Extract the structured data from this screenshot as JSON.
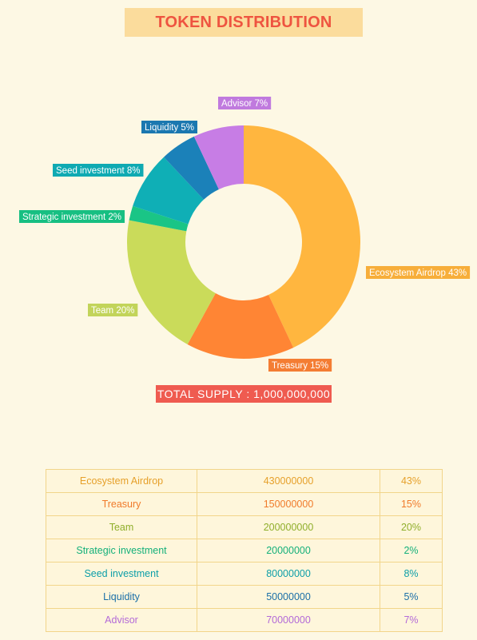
{
  "title": "TOKEN DISTRIBUTION",
  "total_supply_label": "TOTAL SUPPLY : 1,000,000,000",
  "chart_data": {
    "type": "pie",
    "title": "TOKEN DISTRIBUTION",
    "donut": true,
    "slices": [
      {
        "name": "Ecosystem Airdrop",
        "value": 43,
        "label": "Ecosystem Airdrop 43%",
        "color": "#ffb63f"
      },
      {
        "name": "Treasury",
        "value": 15,
        "label": "Treasury 15%",
        "color": "#ff8534"
      },
      {
        "name": "Team",
        "value": 20,
        "label": "Team 20%",
        "color": "#cadb5a"
      },
      {
        "name": "Strategic investment",
        "value": 2,
        "label": "Strategic investment 2%",
        "color": "#1ac586"
      },
      {
        "name": "Seed investment",
        "value": 8,
        "label": "Seed investment 8%",
        "color": "#0fafb6"
      },
      {
        "name": "Liquidity",
        "value": 5,
        "label": "Liquidity 5%",
        "color": "#1b81b9"
      },
      {
        "name": "Advisor",
        "value": 7,
        "label": "Advisor 7%",
        "color": "#c77de5"
      }
    ]
  },
  "table": {
    "rows": [
      {
        "name": "Ecosystem Airdrop",
        "amount": "430000000",
        "percent": "43%",
        "color": "#e6a02a"
      },
      {
        "name": "Treasury",
        "amount": "150000000",
        "percent": "15%",
        "color": "#f07a2a"
      },
      {
        "name": "Team",
        "amount": "200000000",
        "percent": "20%",
        "color": "#8fae2a"
      },
      {
        "name": "Strategic investment",
        "amount": "20000000",
        "percent": "2%",
        "color": "#14b07a"
      },
      {
        "name": "Seed investment",
        "amount": "80000000",
        "percent": "8%",
        "color": "#0c9ea8"
      },
      {
        "name": "Liquidity",
        "amount": "50000000",
        "percent": "5%",
        "color": "#1b6fa8"
      },
      {
        "name": "Advisor",
        "amount": "70000000",
        "percent": "7%",
        "color": "#b36ad8"
      }
    ]
  }
}
